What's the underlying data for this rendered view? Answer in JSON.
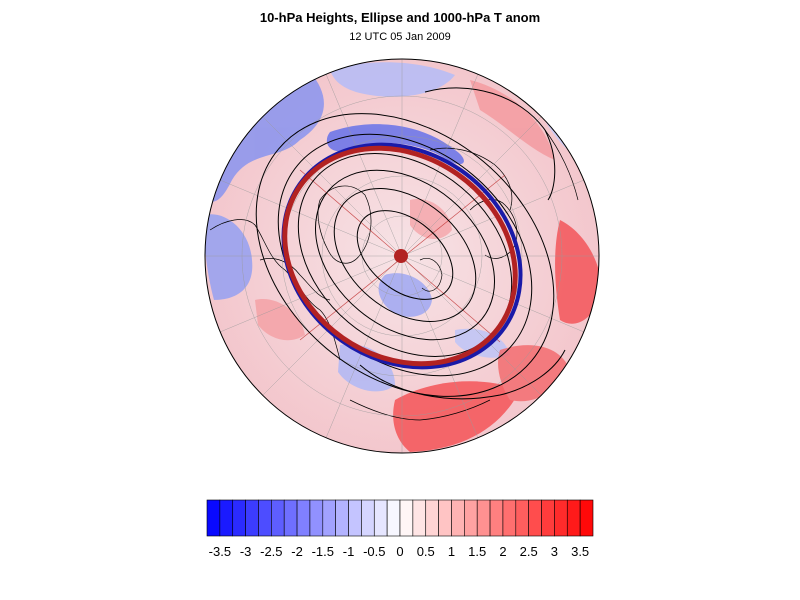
{
  "title": "10-hPa Heights, Ellipse and 1000-hPa T anom",
  "subtitle": "12 UTC 05 Jan 2009",
  "map": {
    "projection": "polar-stereographic",
    "hemisphere": "north",
    "features": [
      "temperature-anomaly-shading",
      "coastlines",
      "lat-lon-grid",
      "height-contours",
      "vortex-ellipse",
      "vortex-centroid"
    ],
    "ellipse_colors": {
      "outer_edge": "#1a1aa8",
      "ellipse": "#b22222",
      "centroid": "#b22222"
    }
  },
  "colorbar": {
    "labels": [
      "-3.5",
      "-3",
      "-2.5",
      "-2",
      "-1.5",
      "-1",
      "-0.5",
      "0",
      "0.5",
      "1",
      "1.5",
      "2",
      "2.5",
      "3",
      "3.5"
    ],
    "min": -3.75,
    "max": 3.75,
    "n_bins": 30,
    "min_color": "#0000ff",
    "mid_color": "#ffffff",
    "max_color": "#ff0000"
  }
}
